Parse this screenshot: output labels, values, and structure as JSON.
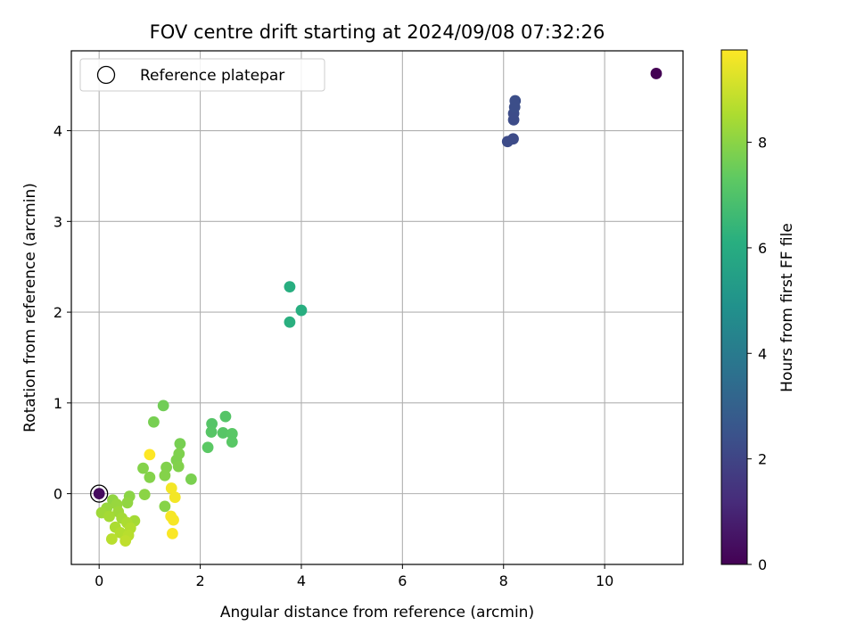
{
  "chart_data": {
    "type": "scatter",
    "title": "FOV centre drift starting at 2024/09/08 07:32:26",
    "xlabel": "Angular distance from reference (arcmin)",
    "ylabel": "Rotation from reference (arcmin)",
    "xlim": [
      -0.55,
      11.55
    ],
    "ylim": [
      -0.78,
      4.88
    ],
    "xticks": [
      0,
      2,
      4,
      6,
      8,
      10
    ],
    "yticks": [
      0,
      1,
      2,
      3,
      4
    ],
    "grid": true,
    "legend": {
      "placement": "top-left",
      "entries": [
        "Reference platepar"
      ]
    },
    "reference_point": {
      "x": 0,
      "y": 0
    },
    "colorbar": {
      "label": "Hours from first FF file",
      "colormap": "viridis",
      "range": [
        0,
        9.75
      ],
      "ticks": [
        0,
        2,
        4,
        6,
        8
      ]
    },
    "points": [
      {
        "x": 11.02,
        "y": 4.63,
        "h": 0.0
      },
      {
        "x": 0.0,
        "y": 0.0,
        "h": 0.3
      },
      {
        "x": 8.08,
        "y": 3.88,
        "h": 2.2
      },
      {
        "x": 8.19,
        "y": 3.91,
        "h": 2.2
      },
      {
        "x": 8.2,
        "y": 4.12,
        "h": 2.25
      },
      {
        "x": 8.2,
        "y": 4.19,
        "h": 2.25
      },
      {
        "x": 8.22,
        "y": 4.26,
        "h": 2.3
      },
      {
        "x": 8.23,
        "y": 4.33,
        "h": 2.3
      },
      {
        "x": 3.77,
        "y": 2.28,
        "h": 6.1
      },
      {
        "x": 4.0,
        "y": 2.02,
        "h": 6.1
      },
      {
        "x": 3.77,
        "y": 1.89,
        "h": 6.15
      },
      {
        "x": 2.5,
        "y": 0.85,
        "h": 7.1
      },
      {
        "x": 2.23,
        "y": 0.77,
        "h": 7.1
      },
      {
        "x": 2.22,
        "y": 0.68,
        "h": 7.15
      },
      {
        "x": 2.45,
        "y": 0.67,
        "h": 7.15
      },
      {
        "x": 2.63,
        "y": 0.66,
        "h": 7.2
      },
      {
        "x": 2.63,
        "y": 0.57,
        "h": 7.2
      },
      {
        "x": 2.15,
        "y": 0.51,
        "h": 7.25
      },
      {
        "x": 1.27,
        "y": 0.97,
        "h": 7.6
      },
      {
        "x": 1.08,
        "y": 0.79,
        "h": 7.7
      },
      {
        "x": 1.6,
        "y": 0.55,
        "h": 7.7
      },
      {
        "x": 1.58,
        "y": 0.44,
        "h": 7.8
      },
      {
        "x": 1.53,
        "y": 0.37,
        "h": 7.8
      },
      {
        "x": 1.57,
        "y": 0.3,
        "h": 7.85
      },
      {
        "x": 1.33,
        "y": 0.29,
        "h": 7.85
      },
      {
        "x": 0.87,
        "y": 0.28,
        "h": 7.9
      },
      {
        "x": 1.3,
        "y": 0.2,
        "h": 7.9
      },
      {
        "x": 1.0,
        "y": 0.18,
        "h": 7.9
      },
      {
        "x": 1.82,
        "y": 0.16,
        "h": 7.75
      },
      {
        "x": 0.6,
        "y": -0.03,
        "h": 8.0
      },
      {
        "x": 0.9,
        "y": -0.01,
        "h": 8.0
      },
      {
        "x": 0.56,
        "y": -0.1,
        "h": 8.1
      },
      {
        "x": 0.27,
        "y": -0.07,
        "h": 8.1
      },
      {
        "x": 0.35,
        "y": -0.12,
        "h": 8.2
      },
      {
        "x": 0.15,
        "y": -0.16,
        "h": 8.2
      },
      {
        "x": 1.3,
        "y": -0.14,
        "h": 7.95
      },
      {
        "x": 0.05,
        "y": -0.21,
        "h": 8.3
      },
      {
        "x": 0.38,
        "y": -0.2,
        "h": 8.3
      },
      {
        "x": 0.2,
        "y": -0.25,
        "h": 8.4
      },
      {
        "x": 0.45,
        "y": -0.27,
        "h": 8.4
      },
      {
        "x": 0.7,
        "y": -0.3,
        "h": 8.4
      },
      {
        "x": 0.55,
        "y": -0.32,
        "h": 8.5
      },
      {
        "x": 0.32,
        "y": -0.37,
        "h": 8.5
      },
      {
        "x": 0.62,
        "y": -0.38,
        "h": 8.6
      },
      {
        "x": 0.42,
        "y": -0.43,
        "h": 8.6
      },
      {
        "x": 0.58,
        "y": -0.46,
        "h": 8.7
      },
      {
        "x": 0.25,
        "y": -0.5,
        "h": 8.7
      },
      {
        "x": 0.52,
        "y": -0.52,
        "h": 8.8
      },
      {
        "x": 1.43,
        "y": 0.06,
        "h": 9.6
      },
      {
        "x": 1.5,
        "y": -0.04,
        "h": 9.6
      },
      {
        "x": 1.42,
        "y": -0.25,
        "h": 9.65
      },
      {
        "x": 1.47,
        "y": -0.29,
        "h": 9.65
      },
      {
        "x": 1.45,
        "y": -0.44,
        "h": 9.7
      },
      {
        "x": 1.0,
        "y": 0.43,
        "h": 9.75
      }
    ]
  }
}
